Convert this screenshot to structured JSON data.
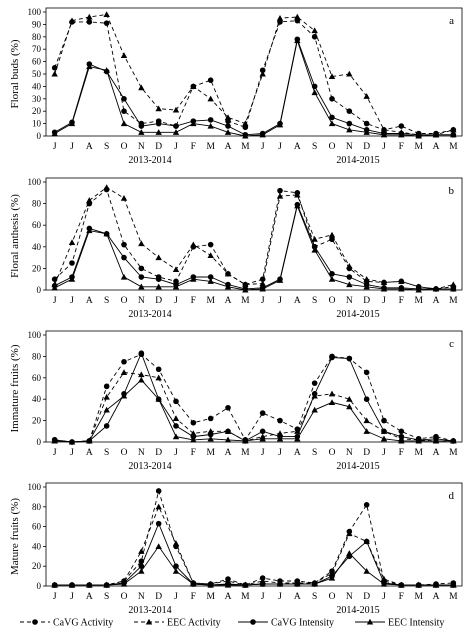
{
  "figure": {
    "legend": [
      {
        "label": "CaVG Activity",
        "key": "cavg_activity",
        "dash": "dashed",
        "marker": "circle"
      },
      {
        "label": "EEC Activity",
        "key": "eec_activity",
        "dash": "dashed",
        "marker": "triangle"
      },
      {
        "label": "CaVG Intensity",
        "key": "cavg_intensity",
        "dash": "solid",
        "marker": "circle"
      },
      {
        "label": "EEC Intensity",
        "key": "eec_intensity",
        "dash": "solid",
        "marker": "triangle"
      }
    ]
  },
  "chart_data": [
    {
      "type": "line",
      "panel_label": "a",
      "ylabel": "Floral buds  (%)",
      "ylim": [
        0,
        100
      ],
      "yticks": [
        0,
        10,
        20,
        30,
        40,
        50,
        60,
        70,
        80,
        90,
        100
      ],
      "categories": [
        "J",
        "J",
        "A",
        "S",
        "O",
        "N",
        "D",
        "J",
        "F",
        "M",
        "A",
        "M",
        "J",
        "J",
        "A",
        "S",
        "O",
        "N",
        "D",
        "J",
        "F",
        "M",
        "A",
        "M"
      ],
      "year_labels": [
        "2013-2014",
        "2014-2015"
      ],
      "series": [
        {
          "name": "CaVG Activity",
          "values": [
            55,
            92,
            92,
            91,
            20,
            10,
            12,
            8,
            40,
            45,
            12,
            7,
            53,
            92,
            93,
            80,
            30,
            20,
            10,
            5,
            8,
            2,
            2,
            5
          ]
        },
        {
          "name": "EEC Activity",
          "values": [
            50,
            93,
            96,
            98,
            65,
            39,
            22,
            21,
            40,
            30,
            15,
            10,
            50,
            95,
            96,
            85,
            48,
            50,
            32,
            5,
            3,
            1,
            1,
            5
          ]
        },
        {
          "name": "CaVG Intensity",
          "values": [
            3,
            11,
            58,
            52,
            30,
            8,
            10,
            8,
            12,
            13,
            8,
            1,
            2,
            10,
            78,
            40,
            15,
            10,
            5,
            2,
            2,
            1,
            1,
            1
          ]
        },
        {
          "name": "EEC Intensity",
          "values": [
            2,
            10,
            56,
            53,
            10,
            3,
            3,
            3,
            10,
            8,
            3,
            0,
            1,
            9,
            77,
            35,
            10,
            5,
            3,
            1,
            1,
            0,
            1,
            1
          ]
        }
      ]
    },
    {
      "type": "line",
      "panel_label": "b",
      "ylabel": "Floral anthesis (%)",
      "ylim": [
        0,
        100
      ],
      "yticks": [
        0,
        20,
        40,
        60,
        80,
        100
      ],
      "categories": [
        "J",
        "J",
        "A",
        "S",
        "O",
        "N",
        "D",
        "J",
        "F",
        "M",
        "A",
        "M",
        "J",
        "J",
        "A",
        "S",
        "O",
        "N",
        "D",
        "J",
        "F",
        "M",
        "A",
        "M"
      ],
      "year_labels": [
        "2013-2014",
        "2014-2015"
      ],
      "series": [
        {
          "name": "CaVG Activity",
          "values": [
            10,
            25,
            80,
            93,
            42,
            20,
            12,
            8,
            40,
            42,
            15,
            5,
            10,
            92,
            90,
            40,
            47,
            20,
            8,
            7,
            8,
            3,
            1,
            3
          ]
        },
        {
          "name": "EEC Activity",
          "values": [
            5,
            44,
            83,
            95,
            85,
            43,
            30,
            19,
            42,
            32,
            15,
            5,
            6,
            87,
            88,
            47,
            51,
            22,
            10,
            7,
            8,
            3,
            1,
            5
          ]
        },
        {
          "name": "CaVG Intensity",
          "values": [
            4,
            12,
            57,
            52,
            30,
            12,
            10,
            5,
            12,
            12,
            5,
            1,
            2,
            10,
            79,
            40,
            15,
            12,
            5,
            2,
            2,
            1,
            1,
            1
          ]
        },
        {
          "name": "EEC Intensity",
          "values": [
            2,
            10,
            55,
            52,
            12,
            3,
            3,
            3,
            10,
            8,
            3,
            0,
            1,
            9,
            78,
            37,
            10,
            5,
            3,
            1,
            1,
            0,
            1,
            1
          ]
        }
      ]
    },
    {
      "type": "line",
      "panel_label": "c",
      "ylabel": "Immature fruits (%)",
      "ylim": [
        0,
        100
      ],
      "yticks": [
        0,
        20,
        40,
        60,
        80,
        100
      ],
      "categories": [
        "J",
        "J",
        "A",
        "S",
        "O",
        "N",
        "D",
        "J",
        "F",
        "M",
        "A",
        "M",
        "J",
        "J",
        "A",
        "S",
        "O",
        "N",
        "D",
        "J",
        "F",
        "M",
        "A",
        "M"
      ],
      "year_labels": [
        "2013-2014",
        "2014-2015"
      ],
      "series": [
        {
          "name": "CaVG Activity",
          "values": [
            2,
            0,
            1,
            52,
            75,
            82,
            68,
            38,
            18,
            22,
            32,
            2,
            27,
            20,
            12,
            55,
            80,
            78,
            65,
            20,
            10,
            3,
            5,
            1
          ]
        },
        {
          "name": "EEC Activity",
          "values": [
            1,
            0,
            1,
            42,
            65,
            63,
            60,
            22,
            8,
            10,
            10,
            1,
            5,
            8,
            10,
            43,
            45,
            40,
            20,
            10,
            3,
            2,
            1,
            1
          ]
        },
        {
          "name": "CaVG Intensity",
          "values": [
            2,
            0,
            1,
            15,
            45,
            83,
            40,
            15,
            5,
            7,
            10,
            1,
            10,
            5,
            5,
            45,
            79,
            78,
            40,
            10,
            5,
            2,
            3,
            1
          ]
        },
        {
          "name": "EEC Intensity",
          "values": [
            1,
            0,
            1,
            30,
            43,
            58,
            40,
            5,
            2,
            3,
            2,
            1,
            3,
            3,
            3,
            30,
            37,
            33,
            10,
            3,
            1,
            1,
            1,
            1
          ]
        }
      ]
    },
    {
      "type": "line",
      "panel_label": "d",
      "ylabel": "Mature fruits (%)",
      "ylim": [
        0,
        100
      ],
      "yticks": [
        0,
        20,
        40,
        60,
        80,
        100
      ],
      "categories": [
        "J",
        "J",
        "A",
        "S",
        "O",
        "N",
        "D",
        "J",
        "F",
        "M",
        "A",
        "M",
        "J",
        "J",
        "A",
        "S",
        "O",
        "N",
        "D",
        "J",
        "F",
        "M",
        "A",
        "M"
      ],
      "year_labels": [
        "2013-2014",
        "2014-2015"
      ],
      "series": [
        {
          "name": "CaVG Activity",
          "values": [
            1,
            1,
            1,
            1,
            5,
            25,
            96,
            40,
            3,
            2,
            7,
            1,
            8,
            5,
            5,
            3,
            15,
            55,
            82,
            5,
            1,
            1,
            2,
            3
          ]
        },
        {
          "name": "EEC Activity",
          "values": [
            1,
            1,
            1,
            1,
            5,
            35,
            80,
            43,
            3,
            2,
            5,
            1,
            5,
            3,
            3,
            3,
            13,
            53,
            45,
            7,
            1,
            1,
            1,
            1
          ]
        },
        {
          "name": "CaVG Intensity",
          "values": [
            1,
            1,
            1,
            1,
            3,
            20,
            63,
            20,
            2,
            1,
            2,
            1,
            2,
            2,
            2,
            2,
            10,
            30,
            45,
            3,
            1,
            1,
            1,
            1
          ]
        },
        {
          "name": "EEC Intensity",
          "values": [
            1,
            1,
            1,
            1,
            2,
            15,
            40,
            15,
            2,
            1,
            1,
            1,
            2,
            2,
            2,
            2,
            8,
            33,
            15,
            2,
            1,
            1,
            1,
            1
          ]
        }
      ]
    }
  ]
}
